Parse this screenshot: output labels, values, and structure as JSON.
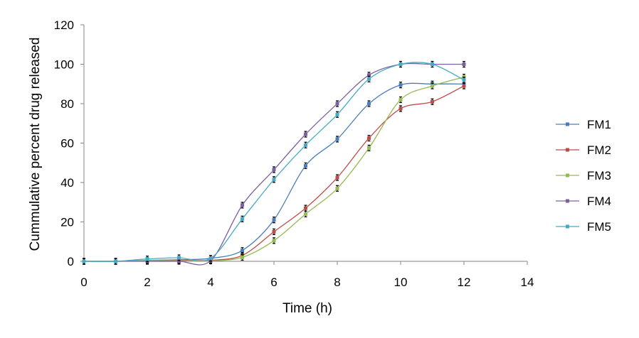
{
  "chart_data": {
    "type": "line",
    "title": "",
    "xlabel": "Time (h)",
    "ylabel": "Cummulative percent drug released",
    "xlim": [
      0,
      14
    ],
    "ylim": [
      0,
      120
    ],
    "x_ticks": [
      0,
      2,
      4,
      6,
      8,
      10,
      12,
      14
    ],
    "y_ticks": [
      0,
      20,
      40,
      60,
      80,
      100,
      120
    ],
    "grid": false,
    "legend_position": "right",
    "smooth": true,
    "error_bars": true,
    "x": [
      0,
      1,
      2,
      3,
      4,
      5,
      6,
      7,
      8,
      9,
      10,
      11,
      12
    ],
    "series": [
      {
        "name": "FM1",
        "color": "#4A7EBB",
        "values": [
          0,
          0,
          0.5,
          0.8,
          1.5,
          5.5,
          21,
          48.5,
          62,
          80,
          89.5,
          90,
          90
        ]
      },
      {
        "name": "FM2",
        "color": "#BE4B48",
        "values": [
          0,
          0,
          0.2,
          0.5,
          0.5,
          3,
          15,
          27,
          42.5,
          62.5,
          77.5,
          81,
          89
        ]
      },
      {
        "name": "FM3",
        "color": "#98B954",
        "values": [
          0,
          0,
          0.3,
          0.3,
          0.2,
          2,
          10.5,
          24,
          37,
          57.5,
          82,
          89,
          93.5
        ]
      },
      {
        "name": "FM4",
        "color": "#7D60A0",
        "values": [
          0,
          0,
          0,
          0,
          0.3,
          28.5,
          46.5,
          64.5,
          80,
          94.5,
          100,
          100,
          100
        ]
      },
      {
        "name": "FM5",
        "color": "#46AAC5",
        "values": [
          0,
          0,
          1.2,
          1.8,
          1.5,
          21.5,
          41.5,
          59,
          74.5,
          92.5,
          100,
          100,
          92
        ]
      }
    ]
  }
}
